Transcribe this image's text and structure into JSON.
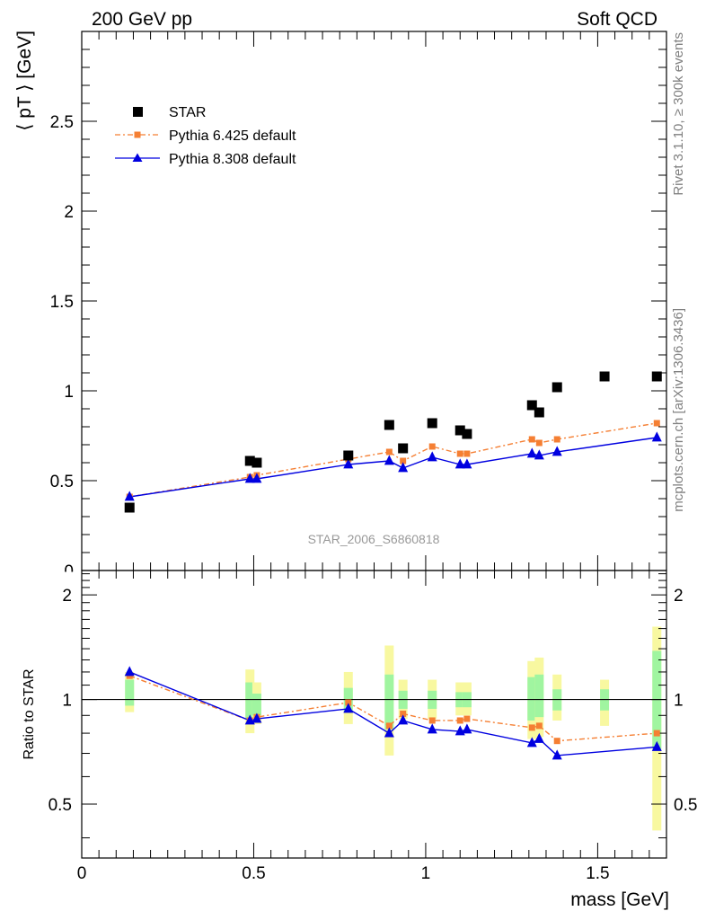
{
  "header": {
    "left_label": "200 GeV pp",
    "right_label": "Soft QCD"
  },
  "side_labels": {
    "rivet": "Rivet 3.1.10, ≥ 300k events",
    "mcplots": "mcplots.cern.ch [arXiv:1306.3436]"
  },
  "watermark": "STAR_2006_S6860818",
  "legend": {
    "star": "STAR",
    "pythia6": "Pythia 6.425 default",
    "pythia8": "Pythia 8.308 default"
  },
  "colors": {
    "star": "#000000",
    "pythia6": "#f57f33",
    "pythia8": "#0000e0",
    "band_inner": "#a0f5a0",
    "band_outer": "#f8f8a0"
  },
  "chart_data": [
    {
      "type": "scatter",
      "panel": "main",
      "ylabel": "⟨ pT ⟩ [GeV]",
      "xlim": [
        0,
        1.7
      ],
      "ylim": [
        0,
        3.0
      ],
      "yticks": [
        "0.5",
        "1",
        "1.5",
        "2",
        "2.5"
      ],
      "series": [
        {
          "name": "STAR",
          "marker": "square",
          "x": [
            0.139,
            0.489,
            0.509,
            0.775,
            0.894,
            0.934,
            1.019,
            1.1,
            1.12,
            1.309,
            1.33,
            1.382,
            1.52,
            1.672
          ],
          "y": [
            0.35,
            0.61,
            0.6,
            0.64,
            0.81,
            0.68,
            0.82,
            0.78,
            0.76,
            0.92,
            0.88,
            1.02,
            1.08,
            1.08
          ]
        },
        {
          "name": "Pythia 6.425 default",
          "marker": "square-small",
          "line": "dashdot",
          "x": [
            0.139,
            0.489,
            0.509,
            0.775,
            0.894,
            0.934,
            1.019,
            1.1,
            1.12,
            1.309,
            1.33,
            1.382,
            1.672
          ],
          "y": [
            0.41,
            0.52,
            0.53,
            0.62,
            0.66,
            0.61,
            0.69,
            0.65,
            0.65,
            0.73,
            0.71,
            0.73,
            0.82
          ]
        },
        {
          "name": "Pythia 8.308 default",
          "marker": "triangle",
          "line": "solid",
          "x": [
            0.139,
            0.489,
            0.509,
            0.775,
            0.894,
            0.934,
            1.019,
            1.1,
            1.12,
            1.309,
            1.33,
            1.382,
            1.672
          ],
          "y": [
            0.41,
            0.51,
            0.51,
            0.59,
            0.61,
            0.57,
            0.63,
            0.59,
            0.59,
            0.65,
            0.64,
            0.66,
            0.74
          ]
        }
      ]
    },
    {
      "type": "line",
      "panel": "ratio",
      "xlabel": "mass [GeV]",
      "ylabel": "Ratio to STAR",
      "xlim": [
        0,
        1.7
      ],
      "ylim": [
        0.35,
        2.35
      ],
      "xticks": [
        "0",
        "0.5",
        "1",
        "1.5"
      ],
      "yticks": [
        "0.5",
        "1",
        "2"
      ],
      "bands": [
        {
          "x": 0.139,
          "inner": [
            0.96,
            1.14
          ],
          "outer": [
            0.92,
            1.2
          ]
        },
        {
          "x": 0.489,
          "inner": [
            0.88,
            1.12
          ],
          "outer": [
            0.8,
            1.22
          ]
        },
        {
          "x": 0.509,
          "inner": [
            0.9,
            1.04
          ],
          "outer": [
            0.85,
            1.12
          ]
        },
        {
          "x": 0.775,
          "inner": [
            0.92,
            1.08
          ],
          "outer": [
            0.85,
            1.2
          ]
        },
        {
          "x": 0.894,
          "inner": [
            0.82,
            1.18
          ],
          "outer": [
            0.69,
            1.43
          ]
        },
        {
          "x": 0.934,
          "inner": [
            0.94,
            1.06
          ],
          "outer": [
            0.88,
            1.14
          ]
        },
        {
          "x": 1.019,
          "inner": [
            0.94,
            1.06
          ],
          "outer": [
            0.88,
            1.14
          ]
        },
        {
          "x": 1.1,
          "inner": [
            0.95,
            1.05
          ],
          "outer": [
            0.9,
            1.12
          ]
        },
        {
          "x": 1.12,
          "inner": [
            0.95,
            1.05
          ],
          "outer": [
            0.9,
            1.12
          ]
        },
        {
          "x": 1.309,
          "inner": [
            0.87,
            1.16
          ],
          "outer": [
            0.77,
            1.29
          ]
        },
        {
          "x": 1.33,
          "inner": [
            0.89,
            1.18
          ],
          "outer": [
            0.78,
            1.32
          ]
        },
        {
          "x": 1.382,
          "inner": [
            0.93,
            1.07
          ],
          "outer": [
            0.87,
            1.18
          ]
        },
        {
          "x": 1.52,
          "inner": [
            0.93,
            1.07
          ],
          "outer": [
            0.84,
            1.14
          ]
        },
        {
          "x": 1.672,
          "inner": [
            0.72,
            1.38
          ],
          "outer": [
            0.42,
            1.62
          ]
        }
      ],
      "series": [
        {
          "name": "Pythia 6.425 default",
          "x": [
            0.139,
            0.489,
            0.509,
            0.775,
            0.894,
            0.934,
            1.019,
            1.1,
            1.12,
            1.309,
            1.33,
            1.382,
            1.672
          ],
          "y": [
            1.17,
            0.87,
            0.89,
            0.98,
            0.84,
            0.91,
            0.87,
            0.87,
            0.88,
            0.83,
            0.84,
            0.76,
            0.8
          ]
        },
        {
          "name": "Pythia 8.308 default",
          "x": [
            0.139,
            0.489,
            0.509,
            0.775,
            0.894,
            0.934,
            1.019,
            1.1,
            1.12,
            1.309,
            1.33,
            1.382,
            1.672
          ],
          "y": [
            1.2,
            0.87,
            0.88,
            0.94,
            0.8,
            0.87,
            0.82,
            0.81,
            0.82,
            0.75,
            0.77,
            0.69,
            0.73
          ]
        }
      ]
    }
  ]
}
